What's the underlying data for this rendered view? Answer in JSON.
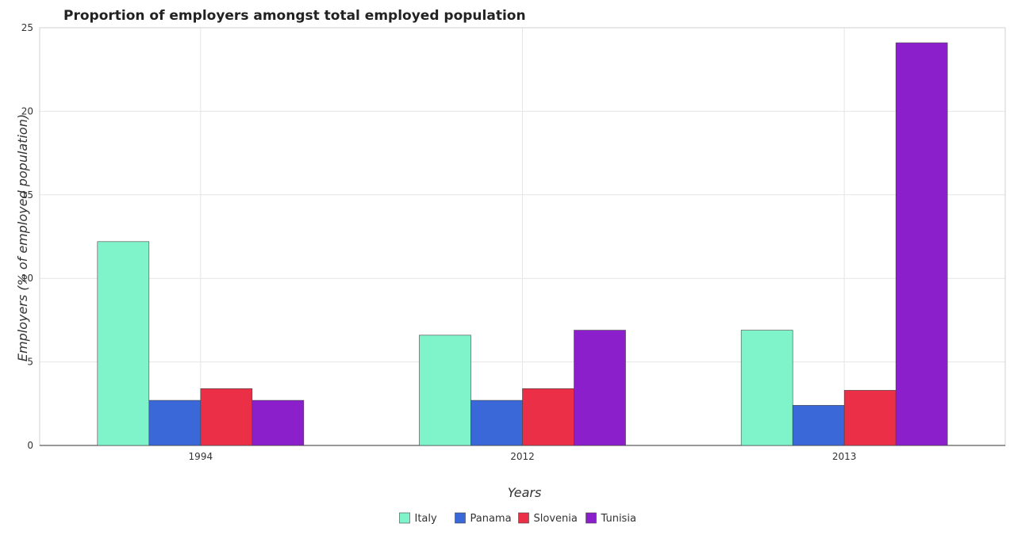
{
  "chart_data": {
    "type": "bar",
    "title": "Proportion of employers amongst total employed population",
    "xlabel": "Years",
    "ylabel": "Employers (% of employed population)",
    "categories": [
      "1994",
      "2012",
      "2013"
    ],
    "ylim": [
      0,
      25
    ],
    "yticks": [
      0,
      5,
      10,
      15,
      20,
      25
    ],
    "grid": true,
    "legend_position": "bottom",
    "series": [
      {
        "name": "Italy",
        "color": "#7ff3c9",
        "values": [
          12.2,
          6.6,
          6.9
        ]
      },
      {
        "name": "Panama",
        "color": "#3a68d8",
        "values": [
          2.7,
          2.7,
          2.4
        ]
      },
      {
        "name": "Slovenia",
        "color": "#ea2f47",
        "values": [
          3.4,
          3.4,
          3.3
        ]
      },
      {
        "name": "Tunisia",
        "color": "#8b1fcc",
        "values": [
          2.7,
          6.9,
          24.1
        ]
      }
    ]
  }
}
